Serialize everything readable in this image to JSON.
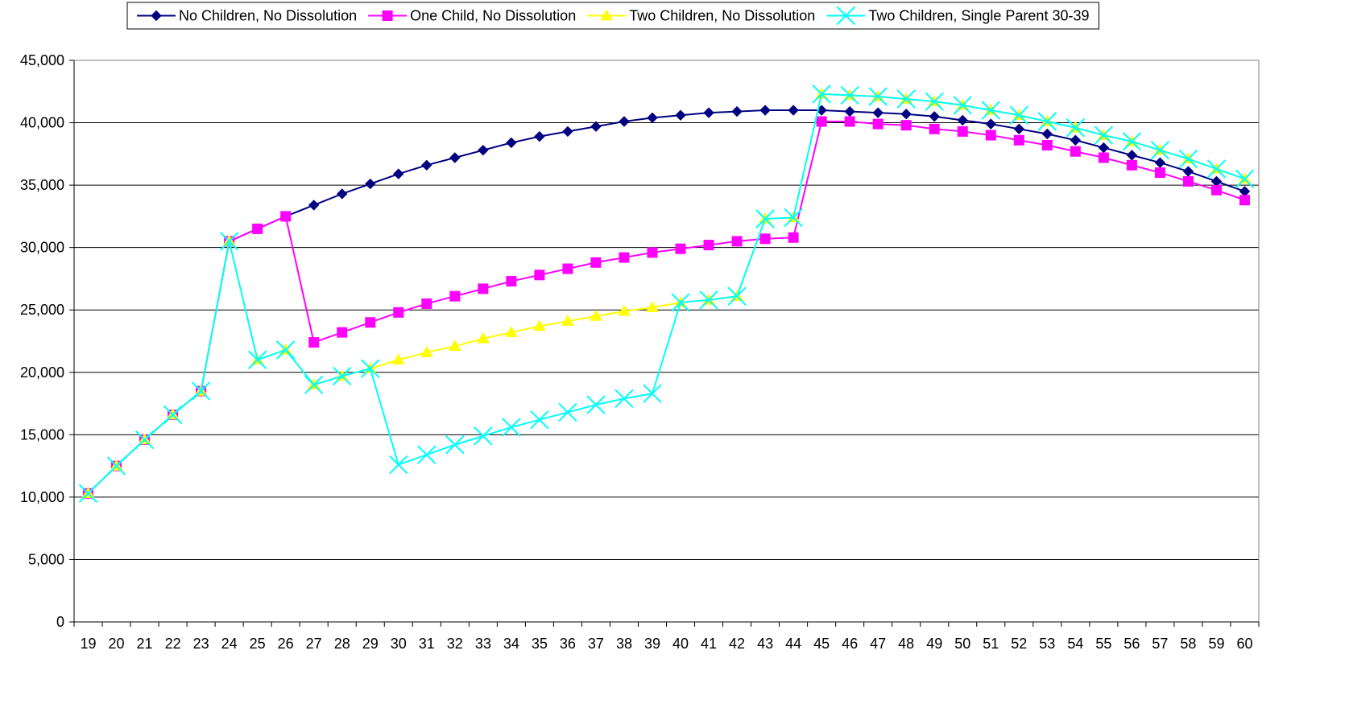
{
  "chart_data": {
    "type": "line",
    "x": [
      19,
      20,
      21,
      22,
      23,
      24,
      25,
      26,
      27,
      28,
      29,
      30,
      31,
      32,
      33,
      34,
      35,
      36,
      37,
      38,
      39,
      40,
      41,
      42,
      43,
      44,
      45,
      46,
      47,
      48,
      49,
      50,
      51,
      52,
      53,
      54,
      55,
      56,
      57,
      58,
      59,
      60
    ],
    "ylim": [
      0,
      45000
    ],
    "yticks": [
      0,
      5000,
      10000,
      15000,
      20000,
      25000,
      30000,
      35000,
      40000,
      45000
    ],
    "ytick_labels": [
      "0",
      "5,000",
      "10,000",
      "15,000",
      "20,000",
      "25,000",
      "30,000",
      "35,000",
      "40,000",
      "45,000"
    ],
    "grid": "horizontal",
    "legend_position": "top",
    "title": "",
    "xlabel": "",
    "ylabel": "",
    "series": [
      {
        "name": "No Children, No Dissolution",
        "color": "#000080",
        "marker": "diamond",
        "values": [
          10300,
          12500,
          14600,
          16600,
          18500,
          30500,
          31500,
          32500,
          33400,
          34300,
          35100,
          35900,
          36600,
          37200,
          37800,
          38400,
          38900,
          39300,
          39700,
          40100,
          40400,
          40600,
          40800,
          40900,
          41000,
          41000,
          41000,
          40900,
          40800,
          40700,
          40500,
          40200,
          39900,
          39500,
          39100,
          38600,
          38000,
          37400,
          36800,
          36100,
          35300,
          34500
        ]
      },
      {
        "name": "One Child, No Dissolution",
        "color": "#ff00ff",
        "marker": "square",
        "values": [
          10300,
          12500,
          14600,
          16600,
          18500,
          30500,
          31500,
          32500,
          22400,
          23200,
          24000,
          24800,
          25500,
          26100,
          26700,
          27300,
          27800,
          28300,
          28800,
          29200,
          29600,
          29900,
          30200,
          30500,
          30700,
          30800,
          40100,
          40100,
          39900,
          39800,
          39500,
          39300,
          39000,
          38600,
          38200,
          37700,
          37200,
          36600,
          36000,
          35300,
          34600,
          33800
        ]
      },
      {
        "name": "Two Children, No Dissolution",
        "color": "#ffff00",
        "marker": "triangle",
        "values": [
          10300,
          12500,
          14600,
          16600,
          18500,
          30500,
          21000,
          21800,
          19000,
          19700,
          20300,
          21000,
          21600,
          22100,
          22700,
          23200,
          23700,
          24100,
          24500,
          24900,
          25200,
          25600,
          25800,
          26100,
          32300,
          32400,
          42300,
          42200,
          42100,
          41900,
          41700,
          41400,
          41000,
          40600,
          40100,
          39600,
          39000,
          38500,
          37800,
          37100,
          36300,
          35500
        ]
      },
      {
        "name": "Two Children, Single Parent 30-39",
        "color": "#00ffff",
        "marker": "x",
        "values": [
          10300,
          12500,
          14600,
          16600,
          18500,
          30500,
          21000,
          21800,
          19000,
          19700,
          20300,
          12600,
          13400,
          14200,
          14900,
          15600,
          16200,
          16800,
          17400,
          17900,
          18300,
          25600,
          25800,
          26100,
          32300,
          32400,
          42300,
          42200,
          42100,
          41900,
          41700,
          41400,
          41000,
          40600,
          40100,
          39600,
          39000,
          38500,
          37800,
          37100,
          36300,
          35500
        ]
      }
    ]
  }
}
